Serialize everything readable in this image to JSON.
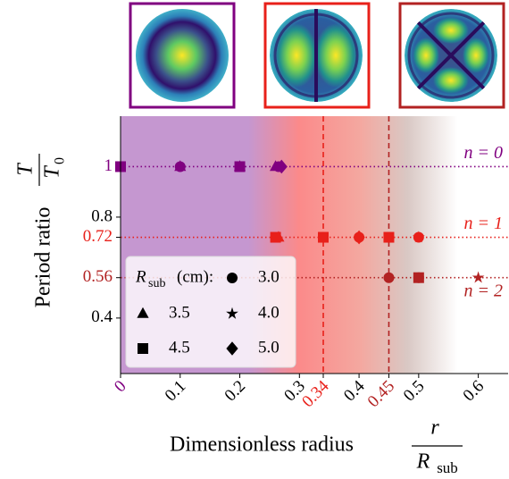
{
  "chart_data": {
    "type": "scatter",
    "y_label": "Period ratio",
    "y_label_fraction": {
      "numerator": "T",
      "denominator": "T",
      "denominator_subscript": "0"
    },
    "x_label": "Dimensionless radius",
    "x_label_fraction": {
      "numerator": "r",
      "denominator": "R",
      "denominator_subscript": "sub"
    },
    "xlim": [
      0,
      0.65
    ],
    "ylim": [
      0.18,
      1.2
    ],
    "xticks": [
      0,
      0.1,
      0.2,
      0.3,
      0.34,
      0.4,
      0.45,
      0.5,
      0.6
    ],
    "xtick_colors": [
      "#800080",
      "#000000",
      "#000000",
      "#000000",
      "#e8201a",
      "#000000",
      "#b22222",
      "#000000",
      "#000000"
    ],
    "yticks": [
      0.4,
      0.56,
      0.72,
      0.8,
      1
    ],
    "ytick_colors": [
      "#000000",
      "#b22222",
      "#e8201a",
      "#000000",
      "#800080"
    ],
    "vlines": [
      {
        "x": 0.34,
        "color": "#e8201a"
      },
      {
        "x": 0.45,
        "color": "#b22222"
      }
    ],
    "series": [
      {
        "name": "n = 0",
        "color": "#800080",
        "level": 1,
        "x": [
          0,
          0.1,
          0.1,
          0.2,
          0.2,
          0.26,
          0.265,
          0.27
        ],
        "values": [
          1,
          1,
          1,
          1,
          1,
          1,
          1,
          1
        ],
        "markers": [
          "square",
          "circle",
          "triangle",
          "square",
          "triangle",
          "triangle",
          "circle",
          "diamond"
        ]
      },
      {
        "name": "n = 1",
        "color": "#e8201a",
        "level": 0.72,
        "x": [
          0.26,
          0.265,
          0.34,
          0.34,
          0.4,
          0.4,
          0.45,
          0.45,
          0.5,
          0.5
        ],
        "values": [
          0.72,
          0.72,
          0.72,
          0.72,
          0.72,
          0.72,
          0.72,
          0.72,
          0.72,
          0.72
        ],
        "markers": [
          "square",
          "triangle",
          "circle",
          "square",
          "diamond",
          "circle",
          "square",
          "circle",
          "circle",
          "star"
        ]
      },
      {
        "name": "n = 2",
        "color": "#b22222",
        "level": 0.56,
        "x": [
          0.45,
          0.5,
          0.5,
          0.6
        ],
        "values": [
          0.56,
          0.56,
          0.56,
          0.56
        ],
        "markers": [
          "circle",
          "square",
          "circle",
          "star"
        ]
      }
    ],
    "legend": {
      "title": "R",
      "title_subscript": "sub",
      "title_suffix": "(cm):",
      "entries": [
        {
          "label": "3.0",
          "marker": "circle"
        },
        {
          "label": "3.5",
          "marker": "triangle"
        },
        {
          "label": "4.0",
          "marker": "star"
        },
        {
          "label": "4.5",
          "marker": "square"
        },
        {
          "label": "5.0",
          "marker": "diamond"
        }
      ]
    }
  }
}
